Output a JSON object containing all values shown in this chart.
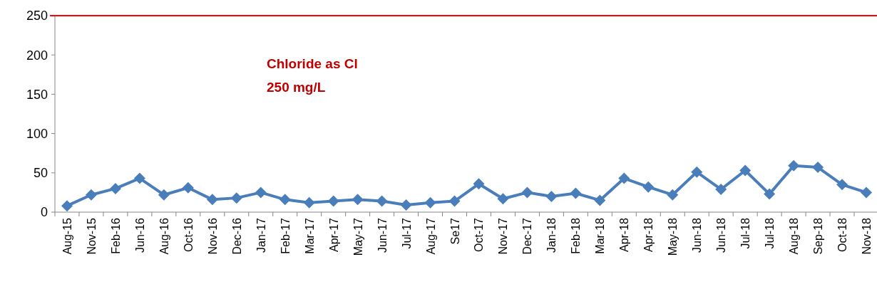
{
  "chart_data": {
    "type": "line",
    "categories": [
      "Aug-15",
      "Nov-15",
      "Feb-16",
      "Jun-16",
      "Aug-16",
      "Oct-16",
      "Nov-16",
      "Dec-16",
      "Jan-17",
      "Feb-17",
      "Mar-17",
      "Apr-17",
      "May-17",
      "Jun-17",
      "Jul-17",
      "Aug-17",
      "Se17",
      "Oct-17",
      "Nov-17",
      "Dec-17",
      "Jan-18",
      "Feb-18",
      "Mar-18",
      "Apr-18",
      "Apr-18",
      "May-18",
      "Jun-18",
      "Jun-18",
      "Jul-18",
      "Jul-18",
      "Aug-18",
      "Sep-18",
      "Oct-18",
      "Nov-18"
    ],
    "series": [
      {
        "color": "#4a7ebb",
        "values": [
          8,
          22,
          30,
          43,
          22,
          31,
          16,
          18,
          25,
          16,
          12,
          14,
          16,
          14,
          9,
          12,
          14,
          36,
          17,
          25,
          20,
          24,
          15,
          43,
          32,
          22,
          51,
          29,
          53,
          23,
          59,
          57,
          35,
          25
        ]
      }
    ],
    "ylim": [
      0,
      250
    ],
    "yticks": [
      0,
      50,
      100,
      150,
      200,
      250
    ],
    "ref_lines": [
      {
        "axis": "y",
        "value": 250,
        "color": "#ff0000"
      }
    ],
    "annotations": [
      "Chloride as Cl\n250 mg/L"
    ],
    "marker": "diamond"
  }
}
